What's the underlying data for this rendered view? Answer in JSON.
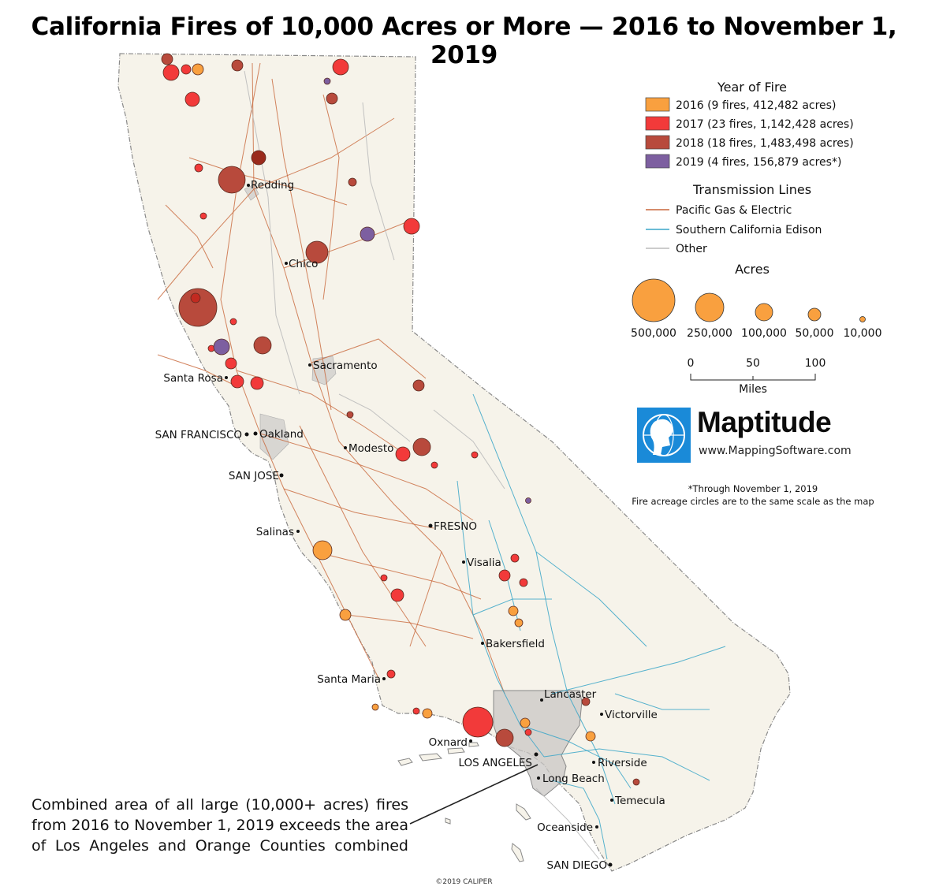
{
  "title": "California Fires of 10,000 Acres or More — 2016 to November 1, 2019",
  "legend": {
    "year_title": "Year of Fire",
    "years": [
      {
        "label": "2016 (9 fires, 412,482 acres)",
        "color": "#f9a03f"
      },
      {
        "label": "2017 (23 fires, 1,142,428 acres)",
        "color": "#f23a3a"
      },
      {
        "label": "2018 (18 fires, 1,483,498 acres)",
        "color": "#b84a3c"
      },
      {
        "label": "2019 (4 fires, 156,879 acres*)",
        "color": "#7d5fa0"
      }
    ],
    "lines_title": "Transmission Lines",
    "lines": [
      {
        "label": "Pacific Gas & Electric",
        "color": "#c8663a"
      },
      {
        "label": "Southern California Edison",
        "color": "#3aa6c8"
      },
      {
        "label": "Other",
        "color": "#bbbbbb"
      }
    ],
    "acres_title": "Acres",
    "acres": [
      "500,000",
      "250,000",
      "100,000",
      "50,000",
      "10,000"
    ],
    "scale": {
      "ticks": [
        "0",
        "50",
        "100"
      ],
      "unit": "Miles"
    }
  },
  "brand": {
    "name": "Maptitude",
    "url": "www.MappingSoftware.com"
  },
  "footnote": [
    "*Through November 1, 2019",
    "Fire acreage circles are to the same scale as the map"
  ],
  "annotation": "Combined area of all large (10,000+ acres) fires from 2016 to November 1, 2019 exceeds the area of Los Angeles and Orange Counties combined",
  "copyright": "©2019 CALIPER",
  "cities": [
    "Redding",
    "Chico",
    "Sacramento",
    "Santa Rosa",
    "SAN FRANCISCO",
    "Oakland",
    "Modesto",
    "SAN JOSE",
    "Salinas",
    "FRESNO",
    "Visalia",
    "Bakersfield",
    "Santa Maria",
    "Lancaster",
    "Victorville",
    "Oxnard",
    "LOS ANGELES",
    "Riverside",
    "Long Beach",
    "Temecula",
    "Oceanside",
    "SAN DIEGO"
  ]
}
